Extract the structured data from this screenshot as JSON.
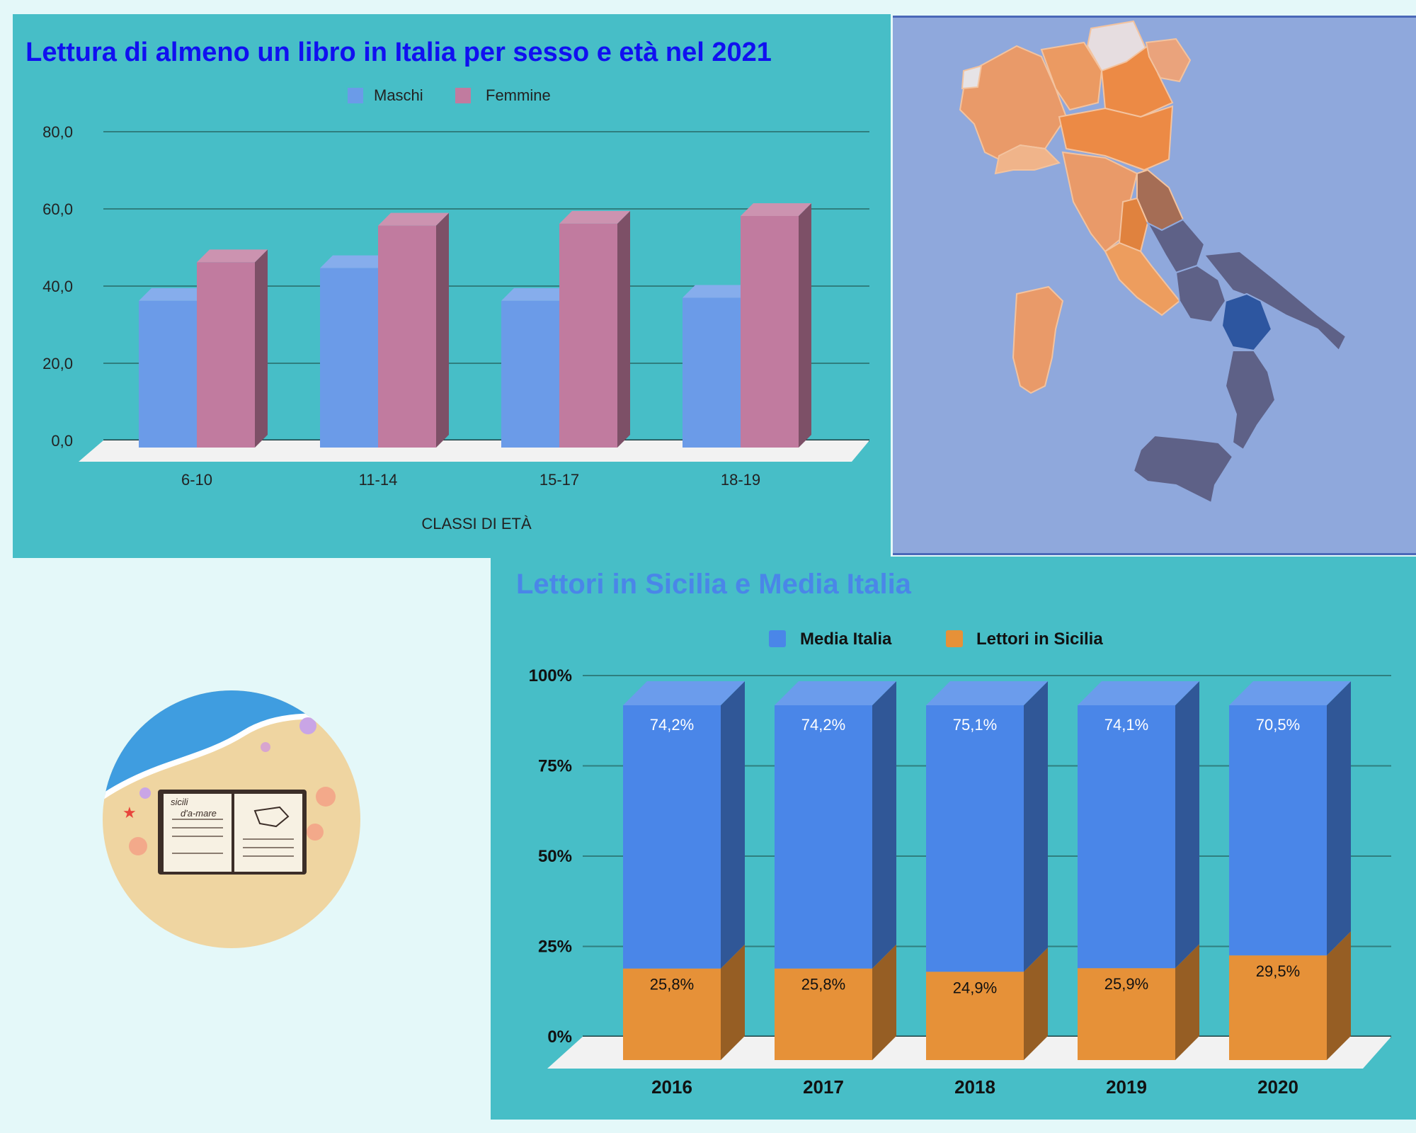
{
  "colors": {
    "page_bg": "#e4f8f9",
    "panel_bg": "#47bec7",
    "maschi": "#6b9be8",
    "femmine": "#c17b9f",
    "media_italia": "#4a86e8",
    "sicilia": "#e69138",
    "map_bg": "#8fa8dc"
  },
  "chart_data": [
    {
      "type": "bar",
      "title": "Lettura di almeno un libro in Italia per sesso e età nel 2021",
      "xlabel": "CLASSI DI ETÀ",
      "ylabel": "",
      "categories": [
        "6-10",
        "11-14",
        "15-17",
        "18-19"
      ],
      "series": [
        {
          "name": "Maschi",
          "values": [
            38.0,
            46.5,
            38.0,
            38.8
          ]
        },
        {
          "name": "Femmine",
          "values": [
            48.0,
            57.5,
            58.0,
            60.0
          ]
        }
      ],
      "ylim": [
        0,
        80
      ],
      "yticks": [
        "0,0",
        "20,0",
        "40,0",
        "60,0",
        "80,0"
      ],
      "legend": "top",
      "grid": true
    },
    {
      "type": "bar",
      "stacked": true,
      "title": "Lettori in Sicilia e Media Italia",
      "xlabel": "",
      "ylabel": "",
      "categories": [
        "2016",
        "2017",
        "2018",
        "2019",
        "2020"
      ],
      "series": [
        {
          "name": "Lettori in Sicilia",
          "values": [
            25.8,
            25.8,
            24.9,
            25.9,
            29.5
          ],
          "labels": [
            "25,8%",
            "25,8%",
            "24,9%",
            "25,9%",
            "29,5%"
          ]
        },
        {
          "name": "Media Italia",
          "values": [
            74.2,
            74.2,
            75.1,
            74.1,
            70.5
          ],
          "labels": [
            "74,2%",
            "74,2%",
            "75,1%",
            "74,1%",
            "70,5%"
          ]
        }
      ],
      "ylim": [
        0,
        100
      ],
      "yticks": [
        "0%",
        "25%",
        "50%",
        "75%",
        "100%"
      ],
      "legend": "top",
      "grid": true
    }
  ],
  "logo": {
    "text_line1": "sicili",
    "text_line2": "d'a-mare"
  }
}
